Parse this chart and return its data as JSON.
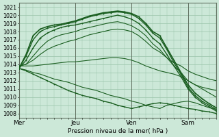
{
  "xlabel": "Pression niveau de la mer( hPa )",
  "bg_color": "#cce8d8",
  "grid_color": "#99c4aa",
  "line_color": "#1a5e20",
  "ylim": [
    1007.5,
    1021.5
  ],
  "yticks": [
    1008,
    1009,
    1010,
    1011,
    1012,
    1013,
    1014,
    1015,
    1016,
    1017,
    1018,
    1019,
    1020,
    1021
  ],
  "xtick_labels": [
    "Mer",
    "Jeu",
    "Ven",
    "Sam"
  ],
  "xtick_positions": [
    0,
    48,
    96,
    144
  ],
  "total_hours": 168,
  "lines": [
    {
      "x": [
        0,
        6,
        12,
        18,
        24,
        30,
        36,
        42,
        48,
        54,
        60,
        66,
        72,
        78,
        84,
        90,
        96,
        102,
        108,
        114,
        120,
        126,
        132,
        138,
        144,
        150,
        156,
        162,
        168
      ],
      "y": [
        1013.5,
        1015.2,
        1017.5,
        1018.3,
        1018.6,
        1018.8,
        1018.9,
        1019.1,
        1019.3,
        1019.6,
        1019.9,
        1020.1,
        1020.3,
        1020.4,
        1020.5,
        1020.4,
        1020.2,
        1019.8,
        1019.0,
        1018.0,
        1017.5,
        1016.0,
        1014.5,
        1013.0,
        1011.5,
        1010.5,
        1009.8,
        1009.2,
        1008.7
      ],
      "marker": true,
      "lw": 1.2
    },
    {
      "x": [
        0,
        6,
        12,
        18,
        24,
        30,
        36,
        42,
        48,
        54,
        60,
        66,
        72,
        78,
        84,
        90,
        96,
        102,
        108,
        114,
        120,
        126,
        132,
        138,
        144,
        150,
        156,
        162,
        168
      ],
      "y": [
        1013.5,
        1015.0,
        1017.0,
        1018.0,
        1018.4,
        1018.6,
        1018.8,
        1019.0,
        1019.2,
        1019.5,
        1019.8,
        1020.0,
        1020.2,
        1020.3,
        1020.4,
        1020.3,
        1020.1,
        1019.6,
        1018.8,
        1017.8,
        1017.2,
        1015.8,
        1014.2,
        1012.8,
        1011.2,
        1010.2,
        1009.5,
        1009.0,
        1008.5
      ],
      "marker": true,
      "lw": 1.0
    },
    {
      "x": [
        0,
        6,
        12,
        18,
        24,
        30,
        36,
        42,
        48,
        54,
        60,
        66,
        72,
        78,
        84,
        90,
        96,
        102,
        108,
        114,
        120,
        126,
        132,
        138,
        144,
        150,
        156,
        162,
        168
      ],
      "y": [
        1013.5,
        1014.5,
        1016.0,
        1017.2,
        1017.8,
        1018.2,
        1018.5,
        1018.7,
        1018.8,
        1019.0,
        1019.2,
        1019.4,
        1019.6,
        1019.8,
        1020.0,
        1019.8,
        1019.5,
        1019.0,
        1018.2,
        1017.2,
        1016.5,
        1015.2,
        1013.8,
        1012.5,
        1011.0,
        1010.0,
        1009.3,
        1008.8,
        1008.3
      ],
      "marker": true,
      "lw": 1.0
    },
    {
      "x": [
        0,
        6,
        12,
        18,
        24,
        30,
        36,
        42,
        48,
        54,
        60,
        66,
        72,
        78,
        84,
        90,
        96,
        102,
        108,
        114,
        120,
        126,
        132,
        138,
        144,
        150,
        156,
        162,
        168
      ],
      "y": [
        1013.8,
        1014.0,
        1015.0,
        1016.0,
        1016.8,
        1017.3,
        1017.6,
        1017.8,
        1018.0,
        1018.3,
        1018.5,
        1018.7,
        1018.9,
        1019.1,
        1019.2,
        1019.0,
        1018.7,
        1018.2,
        1017.5,
        1016.5,
        1015.8,
        1014.8,
        1013.8,
        1013.0,
        1012.0,
        1011.5,
        1011.2,
        1011.0,
        1010.8
      ],
      "marker": false,
      "lw": 0.8
    },
    {
      "x": [
        0,
        6,
        12,
        18,
        24,
        30,
        36,
        42,
        48,
        54,
        60,
        66,
        72,
        78,
        84,
        90,
        96,
        102,
        108,
        114,
        120,
        126,
        132,
        138,
        144,
        150,
        156,
        162,
        168
      ],
      "y": [
        1013.8,
        1014.0,
        1014.5,
        1015.2,
        1015.8,
        1016.2,
        1016.5,
        1016.8,
        1017.0,
        1017.3,
        1017.6,
        1017.8,
        1018.0,
        1018.2,
        1018.3,
        1018.2,
        1018.0,
        1017.5,
        1016.8,
        1016.0,
        1015.5,
        1014.8,
        1014.2,
        1013.8,
        1013.2,
        1012.8,
        1012.5,
        1012.2,
        1012.0
      ],
      "marker": false,
      "lw": 0.8
    },
    {
      "x": [
        0,
        6,
        12,
        18,
        24,
        30,
        36,
        42,
        48,
        54,
        60,
        66,
        72,
        78,
        84,
        90,
        96,
        102,
        108,
        114,
        120,
        126,
        132,
        138,
        144,
        150,
        156,
        162,
        168
      ],
      "y": [
        1013.8,
        1013.8,
        1013.8,
        1013.9,
        1014.0,
        1014.1,
        1014.2,
        1014.3,
        1014.3,
        1014.4,
        1014.5,
        1014.6,
        1014.7,
        1014.8,
        1014.8,
        1014.7,
        1014.5,
        1014.2,
        1013.8,
        1013.5,
        1013.2,
        1013.0,
        1012.8,
        1012.5,
        1012.0,
        1011.5,
        1011.0,
        1010.5,
        1010.0
      ],
      "marker": false,
      "lw": 0.8
    },
    {
      "x": [
        0,
        6,
        12,
        18,
        24,
        30,
        36,
        42,
        48,
        54,
        60,
        66,
        72,
        78,
        84,
        90,
        96,
        102,
        108,
        114,
        120,
        126,
        132,
        138,
        144,
        150,
        156,
        162,
        168
      ],
      "y": [
        1013.5,
        1013.3,
        1013.0,
        1012.8,
        1012.5,
        1012.2,
        1012.0,
        1011.8,
        1011.5,
        1011.2,
        1011.0,
        1010.8,
        1010.5,
        1010.2,
        1010.0,
        1009.8,
        1009.5,
        1009.3,
        1009.0,
        1008.8,
        1008.6,
        1009.0,
        1009.2,
        1009.4,
        1009.5,
        1009.3,
        1009.0,
        1008.7,
        1008.5
      ],
      "marker": false,
      "lw": 0.8
    },
    {
      "x": [
        0,
        6,
        12,
        18,
        24,
        30,
        36,
        42,
        48,
        54,
        60,
        66,
        72,
        78,
        84,
        90,
        96,
        102,
        108,
        114,
        120,
        126,
        132,
        138,
        144,
        150,
        156,
        162,
        168
      ],
      "y": [
        1013.5,
        1013.2,
        1012.8,
        1012.4,
        1012.0,
        1011.6,
        1011.2,
        1010.8,
        1010.5,
        1010.2,
        1010.0,
        1009.8,
        1009.5,
        1009.3,
        1009.0,
        1008.8,
        1008.6,
        1008.8,
        1009.0,
        1009.2,
        1009.3,
        1009.2,
        1009.0,
        1008.8,
        1008.6,
        1008.5,
        1008.3,
        1008.2,
        1008.0
      ],
      "marker": true,
      "lw": 1.0
    }
  ],
  "vline_color": "#607060",
  "fontsize": 6.5,
  "tick_fontsize": 5.8
}
